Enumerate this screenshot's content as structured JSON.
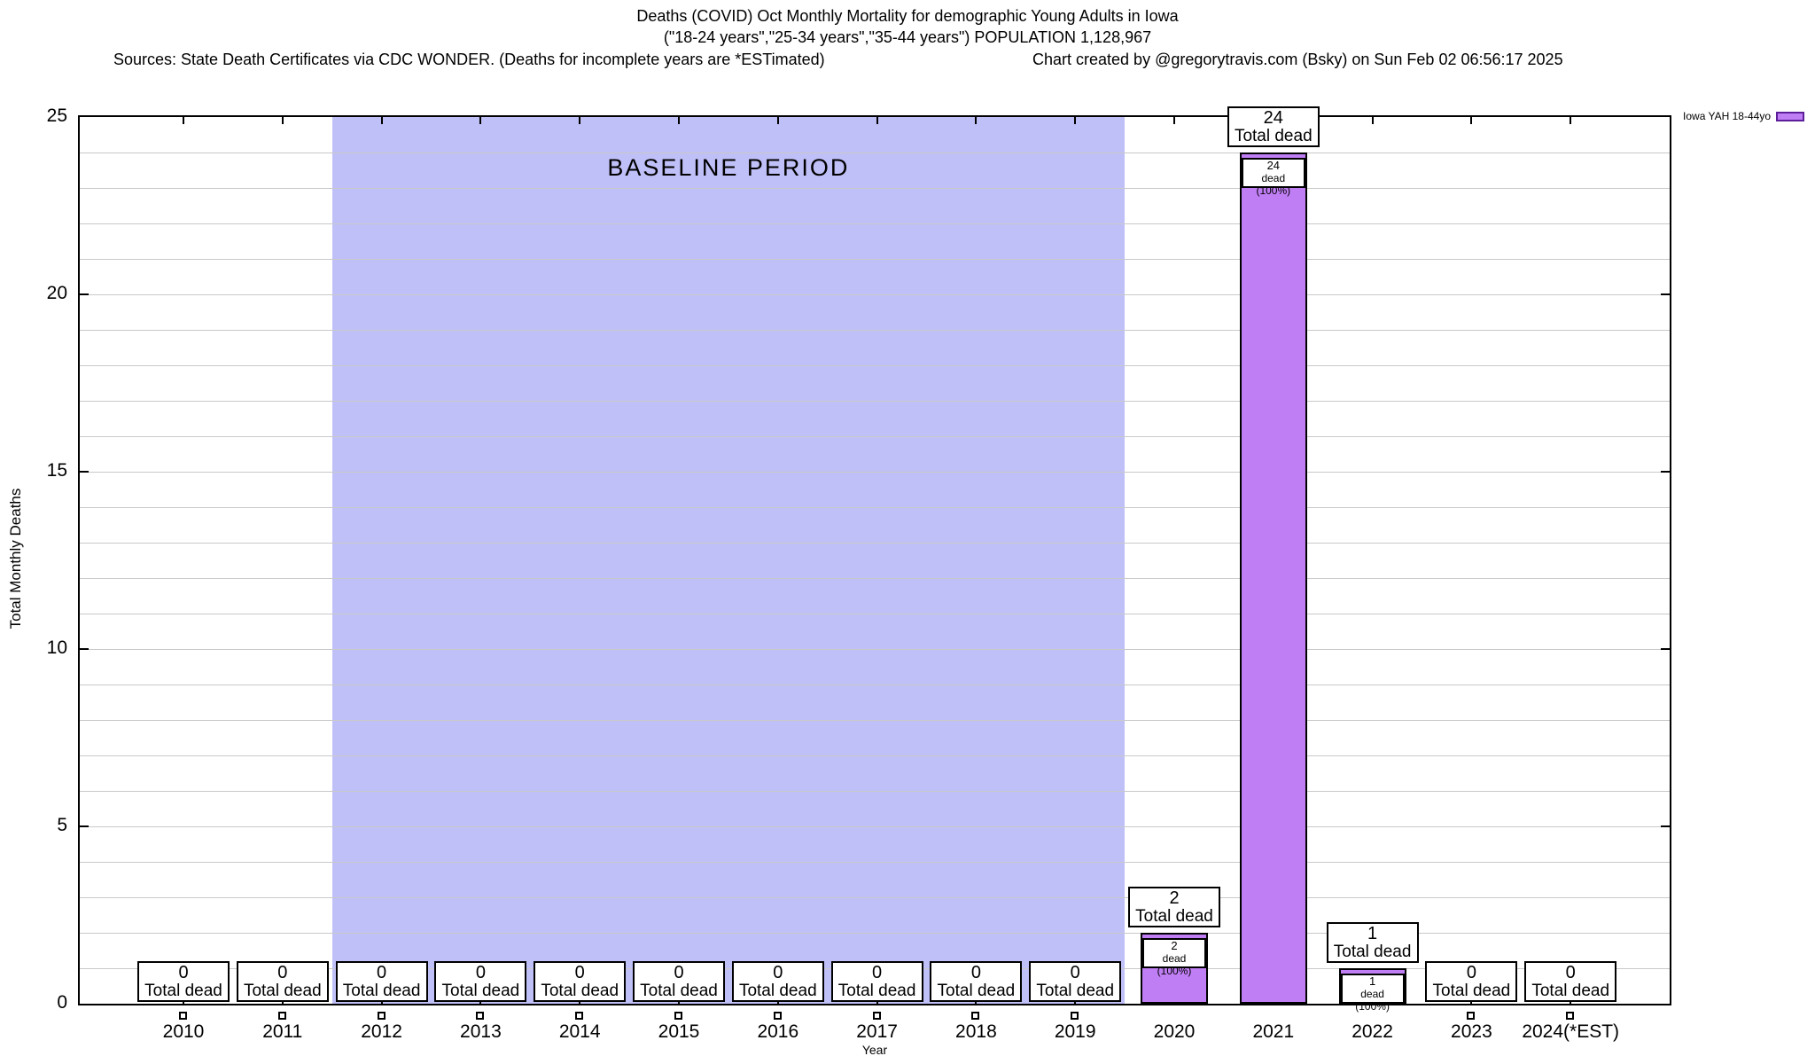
{
  "chart_data": {
    "type": "bar",
    "title": "Deaths (COVID) Oct Monthly Mortality for demographic Young Adults in Iowa",
    "subtitle": "(\"18-24 years\",\"25-34 years\",\"35-44 years\") POPULATION 1,128,967",
    "sources": "Sources: State Death Certificates via CDC WONDER. (Deaths for incomplete years are *ESTimated)",
    "credit": "Chart created by @gregorytravis.com (Bsky) on Sun Feb 02 06:56:17 2025",
    "xlabel": "Year",
    "ylabel": "Total Monthly Deaths",
    "ylim": [
      0,
      25
    ],
    "y_major_ticks": [
      0,
      5,
      10,
      15,
      20,
      25
    ],
    "grid_step": 1,
    "grid_on": true,
    "legend": {
      "label": "Iowa YAH 18-44yo",
      "position": "top-right-outside"
    },
    "baseline_band": {
      "label": "BASELINE PERIOD",
      "start_category": "2012",
      "end_category": "2019"
    },
    "categories": [
      "2010",
      "2011",
      "2012",
      "2013",
      "2014",
      "2015",
      "2016",
      "2017",
      "2018",
      "2019",
      "2020",
      "2021",
      "2022",
      "2023",
      "2024(*EST)"
    ],
    "values": [
      0,
      0,
      0,
      0,
      0,
      0,
      0,
      0,
      0,
      0,
      2,
      24,
      1,
      0,
      0
    ],
    "bar_label_word": "Total dead",
    "pct_label_word": "dead (100%)",
    "colors": {
      "bar_fill": "#c07ef5",
      "bar_border": "#000000",
      "legend_swatch_border": "#5c1f99",
      "baseline_band": "#c0c0f8",
      "grid": "#c9c9c9",
      "axis": "#000000",
      "label_box_bg": "#ffffff"
    }
  }
}
